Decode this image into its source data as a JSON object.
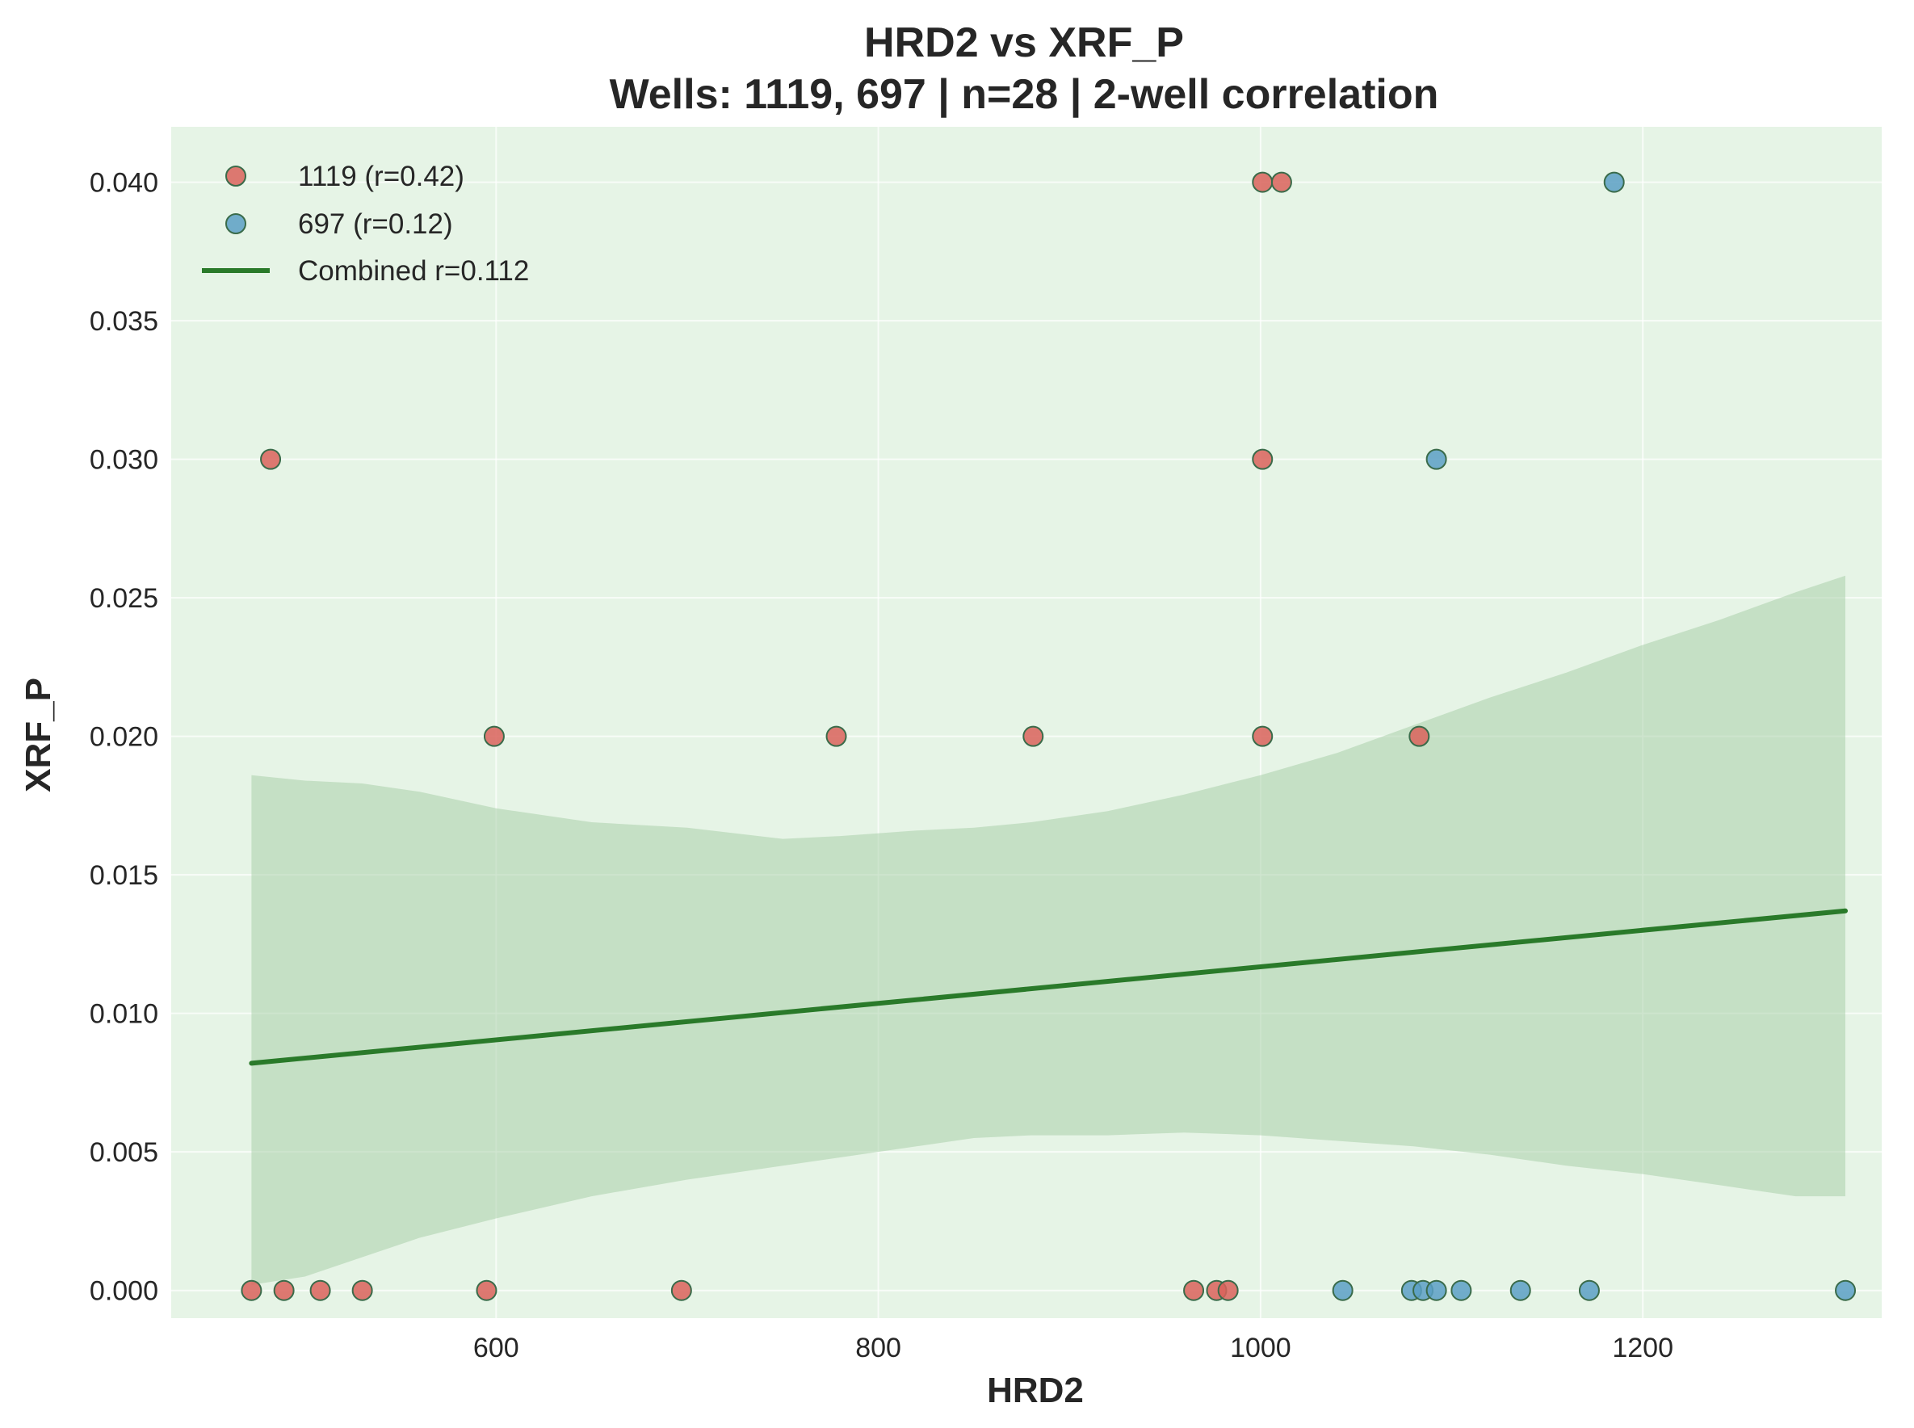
{
  "chart_data": {
    "type": "scatter",
    "title": "HRD2 vs XRF_P",
    "subtitle": "Wells: 1119, 697 | n=28 | 2-well correlation",
    "xlabel": "HRD2",
    "ylabel": "XRF_P",
    "xlim": [
      430,
      1325
    ],
    "ylim": [
      -0.001,
      0.042
    ],
    "xticks": [
      600,
      800,
      1000,
      1200
    ],
    "yticks": [
      0.0,
      0.005,
      0.01,
      0.015,
      0.02,
      0.025,
      0.03,
      0.035,
      0.04
    ],
    "xtick_labels": [
      "600",
      "800",
      "1000",
      "1200"
    ],
    "ytick_labels": [
      "0.000",
      "0.005",
      "0.010",
      "0.015",
      "0.020",
      "0.025",
      "0.030",
      "0.035",
      "0.040"
    ],
    "grid": true,
    "legend_position": "top-left",
    "series": [
      {
        "name": "1119 (r=0.42)",
        "color": "#d9625a",
        "points": [
          [
            472,
            0.0
          ],
          [
            489,
            0.0
          ],
          [
            508,
            0.0
          ],
          [
            530,
            0.0
          ],
          [
            595,
            0.0
          ],
          [
            697,
            0.0
          ],
          [
            965,
            0.0
          ],
          [
            977,
            0.0
          ],
          [
            983,
            0.0
          ],
          [
            482,
            0.03
          ],
          [
            599,
            0.02
          ],
          [
            778,
            0.02
          ],
          [
            881,
            0.02
          ],
          [
            1001,
            0.02
          ],
          [
            1001,
            0.03
          ],
          [
            1001,
            0.04
          ],
          [
            1011,
            0.04
          ],
          [
            1083,
            0.02
          ]
        ]
      },
      {
        "name": "697 (r=0.12)",
        "color": "#5b9fc4",
        "points": [
          [
            1043,
            0.0
          ],
          [
            1079,
            0.0
          ],
          [
            1085,
            0.0
          ],
          [
            1092,
            0.0
          ],
          [
            1105,
            0.0
          ],
          [
            1136,
            0.0
          ],
          [
            1172,
            0.0
          ],
          [
            1306,
            0.0
          ],
          [
            1092,
            0.03
          ],
          [
            1185,
            0.04
          ]
        ]
      }
    ],
    "fit": {
      "name": "Combined r=0.112",
      "color": "#2a7a2a",
      "x": [
        472,
        1306
      ],
      "y": [
        0.0082,
        0.0137
      ]
    },
    "confidence_band": {
      "color": "#a9d0a9",
      "x": [
        472,
        500,
        530,
        560,
        600,
        650,
        700,
        750,
        780,
        820,
        850,
        880,
        920,
        960,
        1000,
        1040,
        1080,
        1120,
        1160,
        1200,
        1240,
        1280,
        1306
      ],
      "upper": [
        0.0186,
        0.0184,
        0.0183,
        0.018,
        0.0174,
        0.0169,
        0.0167,
        0.0163,
        0.0164,
        0.0166,
        0.0167,
        0.0169,
        0.0173,
        0.0179,
        0.0186,
        0.0194,
        0.0204,
        0.0214,
        0.0223,
        0.0233,
        0.0242,
        0.0252,
        0.0258
      ],
      "lower": [
        0.0002,
        0.0005,
        0.0012,
        0.0019,
        0.0026,
        0.0034,
        0.004,
        0.0045,
        0.0048,
        0.0052,
        0.0055,
        0.0056,
        0.0056,
        0.0057,
        0.0056,
        0.0054,
        0.0052,
        0.0049,
        0.0045,
        0.0042,
        0.0038,
        0.0034,
        0.0034
      ]
    },
    "plot_background": "#e6f4e6"
  }
}
